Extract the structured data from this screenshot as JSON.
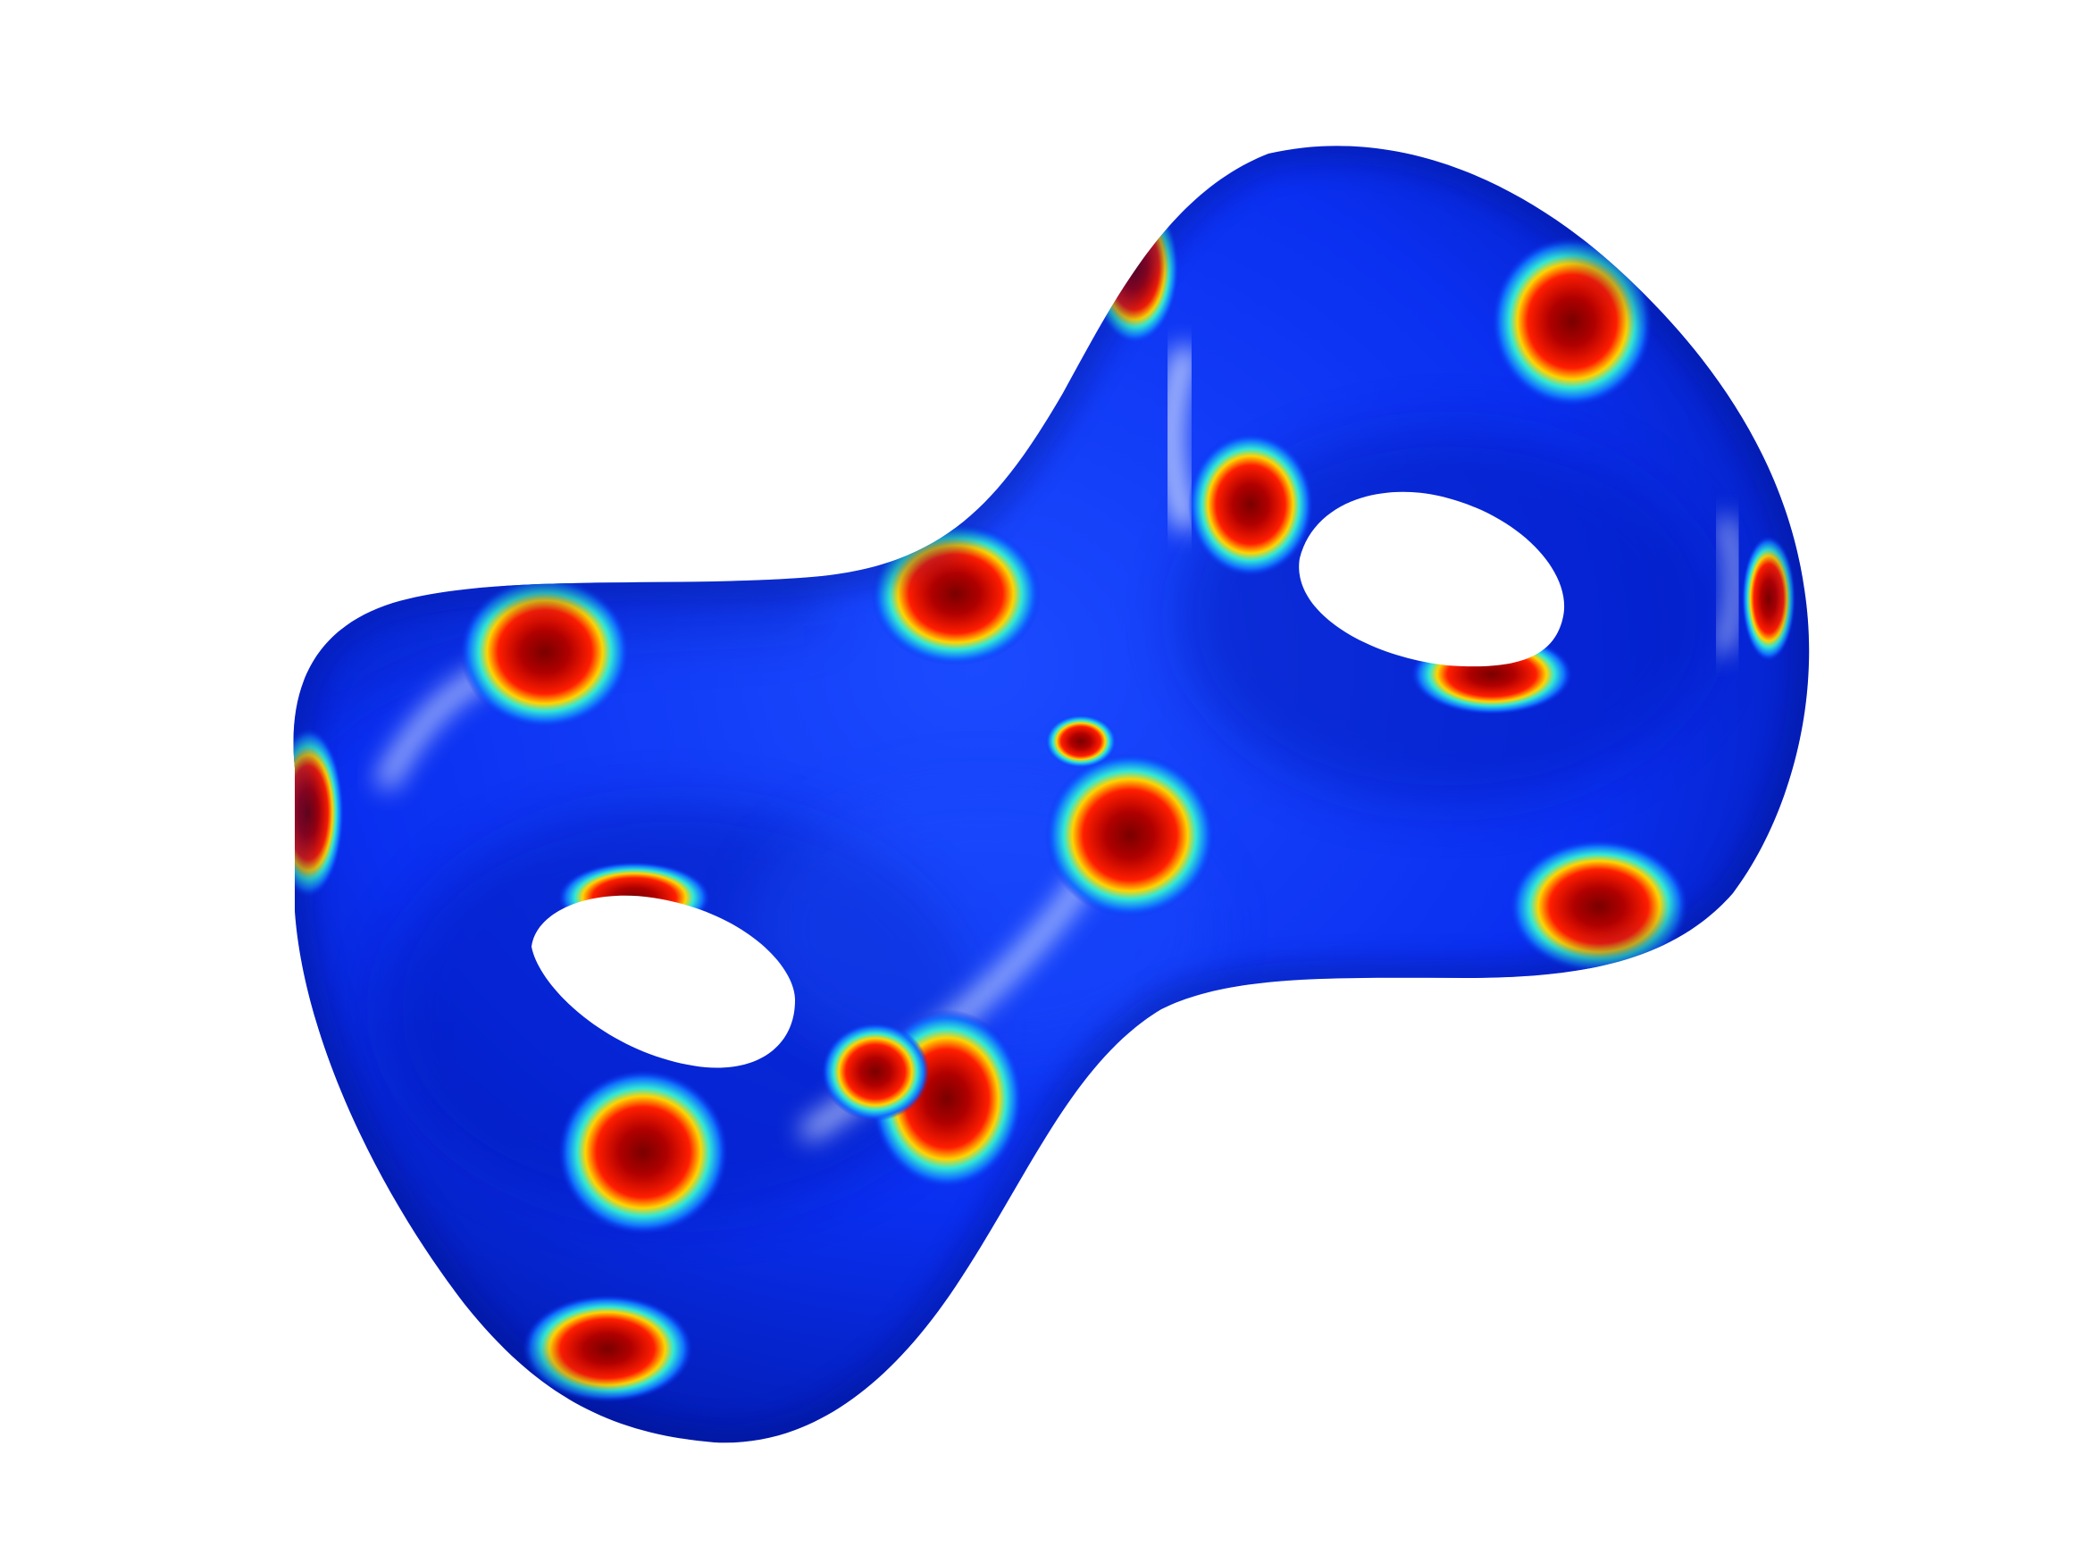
{
  "scene": {
    "background": "#ffffff",
    "surface_base_color": "#0a2ff0",
    "surface_shadow_color": "#0015a8",
    "surface_highlight_color": "#e8f0ff",
    "colormap": [
      "#7a0000",
      "#d40000",
      "#ff2a00",
      "#ffd000",
      "#20e0e0",
      "#0a2ff0"
    ],
    "spot_count": 16,
    "hole_count": 2
  }
}
